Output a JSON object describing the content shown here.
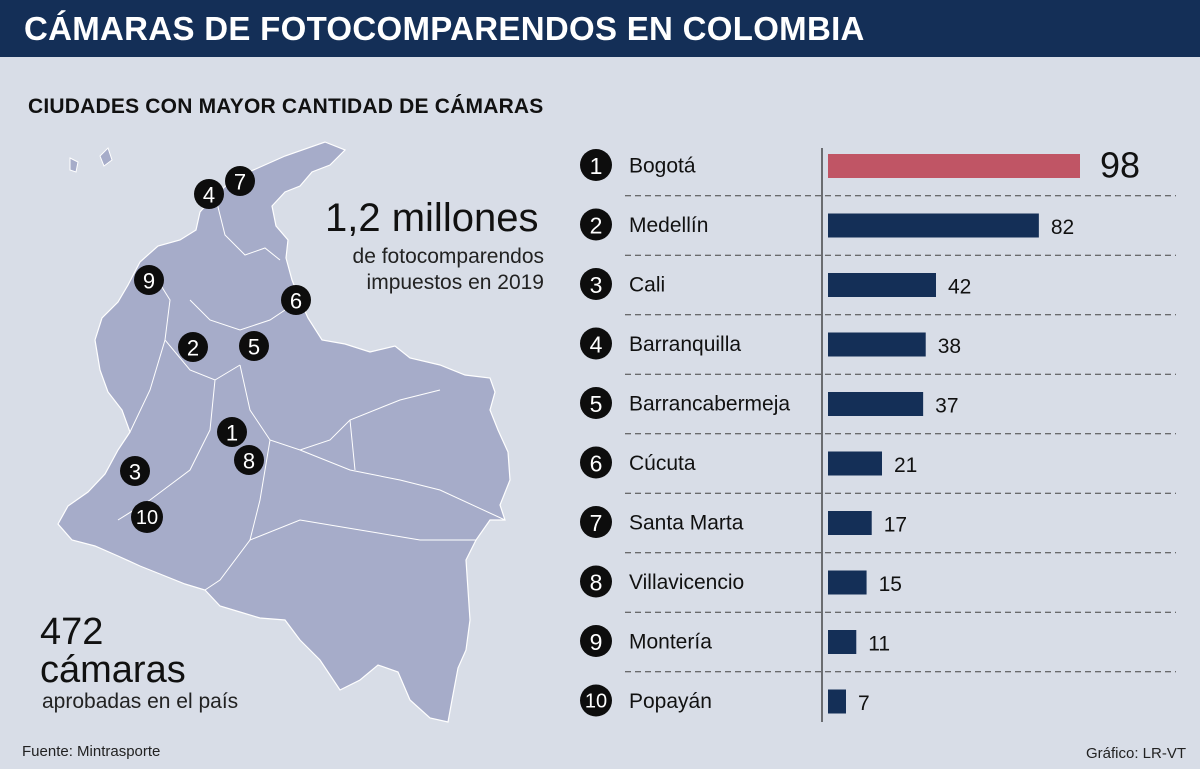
{
  "header": {
    "title": "CÁMARAS DE FOTOCOMPARENDOS EN COLOMBIA"
  },
  "subtitle": "CIUDADES CON MAYOR CANTIDAD DE CÁMARAS",
  "stats": {
    "millions_value": "1,2 millones",
    "millions_line1": "de fotocomparendos",
    "millions_line2": "impuestos en 2019",
    "cameras_value": "472",
    "cameras_word": "cámaras",
    "cameras_label": "aprobadas en el país"
  },
  "map": {
    "markers": [
      "1",
      "2",
      "3",
      "4",
      "5",
      "6",
      "7",
      "8",
      "9",
      "10"
    ]
  },
  "footer": {
    "source": "Fuente: Mintrasporte",
    "credit": "Gráfico: LR-VT"
  },
  "colors": {
    "header": "#142f57",
    "bar": "#142f57",
    "highlight": "#c05565",
    "background": "#d8dde7",
    "map_fill": "#a6acc9"
  },
  "chart_data": {
    "type": "bar",
    "orientation": "horizontal",
    "ranks": [
      "1",
      "2",
      "3",
      "4",
      "5",
      "6",
      "7",
      "8",
      "9",
      "10"
    ],
    "categories": [
      "Bogotá",
      "Medellín",
      "Cali",
      "Barranquilla",
      "Barrancabermeja",
      "Cúcuta",
      "Santa Marta",
      "Villavicencio",
      "Montería",
      "Popayán"
    ],
    "values": [
      98,
      82,
      42,
      38,
      37,
      21,
      17,
      15,
      11,
      7
    ],
    "value_labels": [
      "98",
      "82",
      "42",
      "38",
      "37",
      "21",
      "17",
      "15",
      "11",
      "7"
    ],
    "highlight_index": 0,
    "xlim": [
      0,
      98
    ],
    "grid": false
  }
}
